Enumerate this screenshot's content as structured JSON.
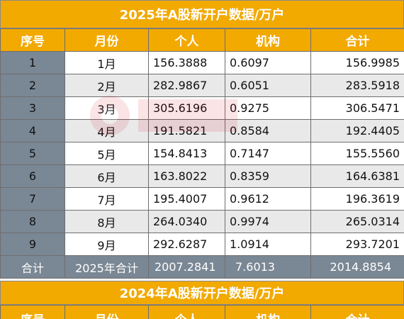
{
  "table_2025": {
    "title": "2025年A股新开户数据/万户",
    "headers": [
      "序号",
      "月份",
      "个人",
      "机构",
      "合计"
    ],
    "rows": [
      {
        "idx": "1",
        "month": "1月",
        "individual": "156.3888",
        "institution": "0.6097",
        "total": "156.9985"
      },
      {
        "idx": "2",
        "month": "2月",
        "individual": "282.9867",
        "institution": "0.6051",
        "total": "283.5918"
      },
      {
        "idx": "3",
        "month": "3月",
        "individual": "305.6196",
        "institution": "0.9275",
        "total": "306.5471"
      },
      {
        "idx": "4",
        "month": "4月",
        "individual": "191.5821",
        "institution": "0.8584",
        "total": "192.4405"
      },
      {
        "idx": "5",
        "month": "5月",
        "individual": "154.8413",
        "institution": "0.7147",
        "total": "155.5560"
      },
      {
        "idx": "6",
        "month": "6月",
        "individual": "163.8022",
        "institution": "0.8359",
        "total": "164.6381"
      },
      {
        "idx": "7",
        "month": "7月",
        "individual": "195.4007",
        "institution": "0.9612",
        "total": "196.3619"
      },
      {
        "idx": "8",
        "month": "8月",
        "individual": "264.0340",
        "institution": "0.9974",
        "total": "265.0314"
      },
      {
        "idx": "9",
        "month": "9月",
        "individual": "292.6287",
        "institution": "1.0914",
        "total": "293.7201"
      }
    ],
    "summary": {
      "idx": "合计",
      "month": "2025年合计",
      "individual": "2007.2841",
      "institution": "7.6013",
      "total": "2014.8854"
    }
  },
  "table_2024": {
    "title": "2024年A股新开户数据/万户",
    "headers": [
      "序号",
      "月份",
      "个人",
      "机构",
      "合计"
    ]
  },
  "colors": {
    "header_bg": "#f2a900",
    "index_bg": "#7a8794",
    "stripe_bg": "#e9e9e9"
  }
}
